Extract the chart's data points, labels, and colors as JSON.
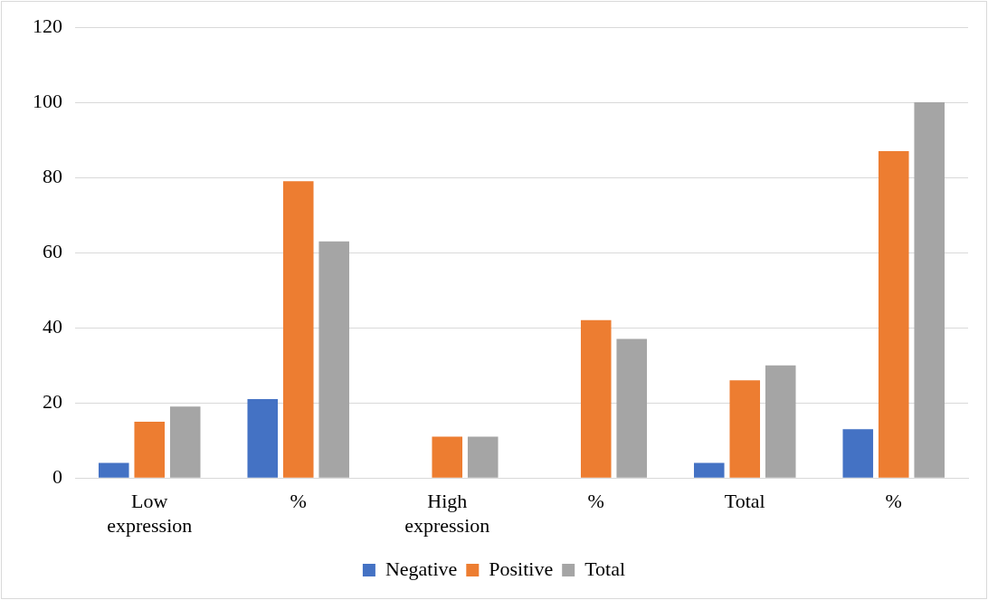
{
  "chart_data": {
    "type": "bar",
    "categories": [
      "Low expression",
      "%",
      "High expression",
      "%",
      "Total",
      "%"
    ],
    "series": [
      {
        "name": "Negative",
        "color": "#4472c4",
        "values": [
          4,
          21,
          0,
          0,
          4,
          13
        ]
      },
      {
        "name": "Positive",
        "color": "#ed7d31",
        "values": [
          15,
          79,
          11,
          42,
          26,
          87
        ]
      },
      {
        "name": "Total",
        "color": "#a5a5a5",
        "values": [
          19,
          63,
          11,
          37,
          30,
          100
        ]
      }
    ],
    "ylim": [
      0,
      120
    ],
    "yticks": [
      0,
      20,
      40,
      60,
      80,
      100,
      120
    ],
    "grid": "y",
    "legend": "bottom"
  }
}
